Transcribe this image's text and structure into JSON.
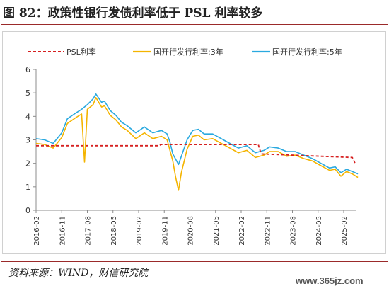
{
  "figure": {
    "title": "图 82：政策性银行发债利率低于 PSL 利率较多",
    "source": "资料来源：WIND，财信研究院",
    "watermark": "www.365jz.com"
  },
  "colors": {
    "accent_rule": "#9b2a2a",
    "psl": "#d62020",
    "cdb_3y": "#f4b400",
    "cdb_5y": "#2aa9df",
    "axis": "#8c8c8c",
    "tick_text": "#333333"
  },
  "chart_data": {
    "type": "line",
    "title": "",
    "xlabel": "",
    "ylabel": "",
    "ylim": [
      0,
      6
    ],
    "yticks": [
      0,
      1,
      2,
      3,
      4,
      5,
      6
    ],
    "xlim": [
      "2016-02",
      "2025-08"
    ],
    "xticks": [
      "2016-02",
      "2016-11",
      "2017-08",
      "2018-05",
      "2019-02",
      "2019-11",
      "2020-08",
      "2021-05",
      "2022-02",
      "2022-11",
      "2023-08",
      "2024-05",
      "2025-02"
    ],
    "grid": false,
    "legend_position": "top",
    "series": [
      {
        "name": "PSL利率",
        "style": "dashed",
        "color": "#d62020",
        "x": [
          "2016-02",
          "2019-09",
          "2019-10",
          "2022-08",
          "2022-09",
          "2025-05",
          "2025-06"
        ],
        "y": [
          2.75,
          2.75,
          2.8,
          2.8,
          2.4,
          2.25,
          2.0
        ]
      },
      {
        "name": "国开行发行利率:3年",
        "style": "solid",
        "color": "#f4b400",
        "x": [
          "2016-02",
          "2016-05",
          "2016-08",
          "2016-11",
          "2017-01",
          "2017-04",
          "2017-06",
          "2017-07",
          "2017-08",
          "2017-10",
          "2017-11",
          "2018-01",
          "2018-02",
          "2018-04",
          "2018-06",
          "2018-08",
          "2018-10",
          "2019-01",
          "2019-04",
          "2019-07",
          "2019-10",
          "2019-12",
          "2020-01",
          "2020-02",
          "2020-03",
          "2020-04",
          "2020-05",
          "2020-07",
          "2020-09",
          "2020-11",
          "2021-01",
          "2021-04",
          "2021-07",
          "2021-10",
          "2022-01",
          "2022-04",
          "2022-07",
          "2022-10",
          "2022-12",
          "2023-03",
          "2023-06",
          "2023-09",
          "2023-12",
          "2024-03",
          "2024-06",
          "2024-09",
          "2024-11",
          "2025-01",
          "2025-03",
          "2025-05",
          "2025-07"
        ],
        "y": [
          2.85,
          2.8,
          2.65,
          3.1,
          3.7,
          3.95,
          4.1,
          2.05,
          4.3,
          4.5,
          4.8,
          4.4,
          4.45,
          4.05,
          3.85,
          3.55,
          3.4,
          3.05,
          3.3,
          3.05,
          3.15,
          3.0,
          2.55,
          2.1,
          1.4,
          0.85,
          1.6,
          2.6,
          3.15,
          3.2,
          3.0,
          3.05,
          2.85,
          2.65,
          2.45,
          2.55,
          2.25,
          2.35,
          2.5,
          2.5,
          2.3,
          2.35,
          2.2,
          2.1,
          1.9,
          1.7,
          1.75,
          1.45,
          1.65,
          1.55,
          1.4
        ]
      },
      {
        "name": "国开行发行利率:5年",
        "style": "solid",
        "color": "#2aa9df",
        "x": [
          "2016-02",
          "2016-05",
          "2016-08",
          "2016-11",
          "2017-01",
          "2017-04",
          "2017-06",
          "2017-08",
          "2017-10",
          "2017-11",
          "2018-01",
          "2018-02",
          "2018-04",
          "2018-06",
          "2018-08",
          "2018-10",
          "2019-01",
          "2019-04",
          "2019-07",
          "2019-10",
          "2019-12",
          "2020-01",
          "2020-02",
          "2020-04",
          "2020-05",
          "2020-07",
          "2020-09",
          "2020-11",
          "2021-01",
          "2021-04",
          "2021-07",
          "2021-10",
          "2022-01",
          "2022-04",
          "2022-07",
          "2022-10",
          "2022-12",
          "2023-03",
          "2023-06",
          "2023-09",
          "2023-12",
          "2024-03",
          "2024-06",
          "2024-09",
          "2024-11",
          "2025-01",
          "2025-03",
          "2025-05",
          "2025-07"
        ],
        "y": [
          3.05,
          3.0,
          2.85,
          3.3,
          3.9,
          4.15,
          4.3,
          4.5,
          4.75,
          4.95,
          4.6,
          4.65,
          4.25,
          4.05,
          3.75,
          3.6,
          3.3,
          3.55,
          3.3,
          3.4,
          3.25,
          2.9,
          2.4,
          1.95,
          2.3,
          3.0,
          3.4,
          3.45,
          3.25,
          3.25,
          3.05,
          2.85,
          2.65,
          2.75,
          2.45,
          2.55,
          2.7,
          2.65,
          2.5,
          2.5,
          2.35,
          2.2,
          2.0,
          1.8,
          1.85,
          1.6,
          1.75,
          1.65,
          1.55
        ]
      }
    ]
  }
}
